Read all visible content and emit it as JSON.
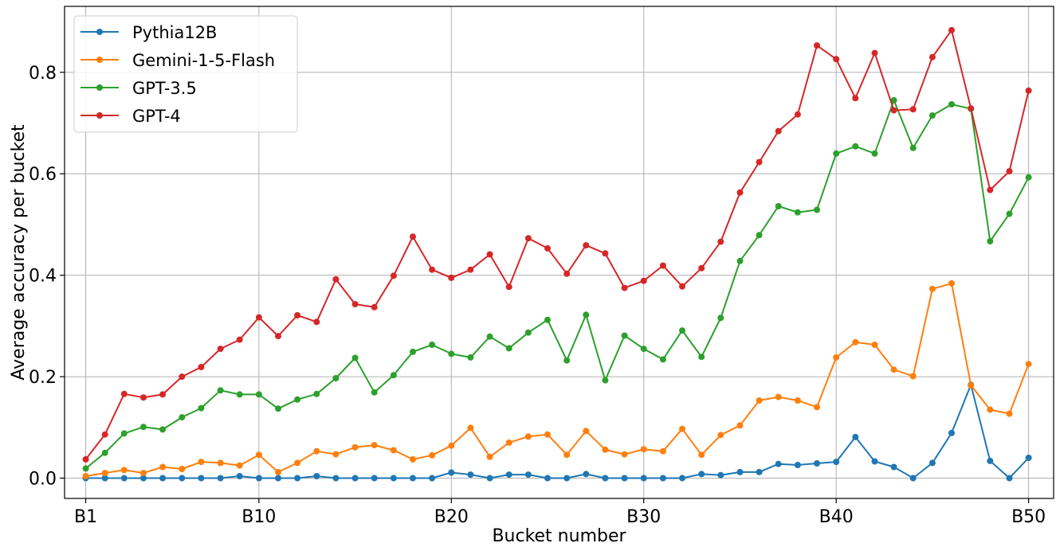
{
  "chart_data": {
    "type": "line",
    "title": "",
    "xlabel": "Bucket number",
    "ylabel": "Average accuracy per bucket",
    "x": [
      1,
      2,
      3,
      4,
      5,
      6,
      7,
      8,
      9,
      10,
      11,
      12,
      13,
      14,
      15,
      16,
      17,
      18,
      19,
      20,
      21,
      22,
      23,
      24,
      25,
      26,
      27,
      28,
      29,
      30,
      31,
      32,
      33,
      34,
      35,
      36,
      37,
      38,
      39,
      40,
      41,
      42,
      43,
      44,
      45,
      46,
      47,
      48,
      49,
      50
    ],
    "xlim": [
      -0.1,
      51.3
    ],
    "ylim": [
      -0.04,
      0.93
    ],
    "xticks": [
      {
        "value": 1,
        "label": "B1"
      },
      {
        "value": 10,
        "label": "B10"
      },
      {
        "value": 20,
        "label": "B20"
      },
      {
        "value": 30,
        "label": "B30"
      },
      {
        "value": 40,
        "label": "B40"
      },
      {
        "value": 50,
        "label": "B50"
      }
    ],
    "yticks": [
      {
        "value": 0.0,
        "label": "0.0"
      },
      {
        "value": 0.2,
        "label": "0.2"
      },
      {
        "value": 0.4,
        "label": "0.4"
      },
      {
        "value": 0.6,
        "label": "0.6"
      },
      {
        "value": 0.8,
        "label": "0.8"
      }
    ],
    "grid": true,
    "legend_position": "top-left",
    "series": [
      {
        "name": "Pythia12B",
        "color": "#1f77b4",
        "values": [
          0.0,
          0.0,
          0.0,
          0.0,
          0.0,
          0.0,
          0.0,
          0.0,
          0.004,
          0.0,
          0.0,
          0.0,
          0.004,
          0.0,
          0.0,
          0.0,
          0.0,
          0.0,
          0.0,
          0.011,
          0.007,
          0.0,
          0.007,
          0.007,
          0.0,
          0.0,
          0.008,
          0.0,
          0.0,
          0.0,
          0.0,
          0.0,
          0.008,
          0.006,
          0.012,
          0.012,
          0.028,
          0.026,
          0.029,
          0.032,
          0.081,
          0.033,
          0.022,
          0.0,
          0.03,
          0.089,
          0.184,
          0.034,
          0.0,
          0.04
        ]
      },
      {
        "name": "Gemini-1-5-Flash",
        "color": "#ff7f0e",
        "values": [
          0.004,
          0.01,
          0.016,
          0.01,
          0.022,
          0.018,
          0.032,
          0.03,
          0.025,
          0.046,
          0.012,
          0.03,
          0.053,
          0.047,
          0.061,
          0.065,
          0.055,
          0.037,
          0.045,
          0.064,
          0.099,
          0.042,
          0.07,
          0.082,
          0.086,
          0.046,
          0.093,
          0.056,
          0.047,
          0.057,
          0.053,
          0.097,
          0.046,
          0.085,
          0.104,
          0.153,
          0.16,
          0.153,
          0.14,
          0.238,
          0.268,
          0.263,
          0.214,
          0.201,
          0.373,
          0.384,
          0.183,
          0.135,
          0.127,
          0.225
        ]
      },
      {
        "name": "GPT-3.5",
        "color": "#2ca02c",
        "values": [
          0.019,
          0.05,
          0.088,
          0.101,
          0.096,
          0.12,
          0.138,
          0.173,
          0.165,
          0.165,
          0.137,
          0.155,
          0.166,
          0.197,
          0.237,
          0.169,
          0.203,
          0.249,
          0.263,
          0.245,
          0.238,
          0.279,
          0.256,
          0.287,
          0.312,
          0.232,
          0.322,
          0.193,
          0.281,
          0.255,
          0.234,
          0.291,
          0.239,
          0.316,
          0.428,
          0.479,
          0.536,
          0.524,
          0.529,
          0.64,
          0.654,
          0.64,
          0.745,
          0.651,
          0.715,
          0.737,
          0.728,
          0.467,
          0.521,
          0.593
        ]
      },
      {
        "name": "GPT-4",
        "color": "#d62728",
        "values": [
          0.037,
          0.086,
          0.166,
          0.159,
          0.165,
          0.2,
          0.219,
          0.255,
          0.273,
          0.317,
          0.28,
          0.321,
          0.308,
          0.392,
          0.343,
          0.337,
          0.399,
          0.476,
          0.411,
          0.395,
          0.411,
          0.441,
          0.377,
          0.473,
          0.453,
          0.403,
          0.459,
          0.443,
          0.375,
          0.389,
          0.419,
          0.378,
          0.414,
          0.466,
          0.563,
          0.623,
          0.684,
          0.717,
          0.853,
          0.826,
          0.749,
          0.838,
          0.725,
          0.727,
          0.83,
          0.883,
          0.729,
          0.568,
          0.605,
          0.764
        ]
      }
    ]
  }
}
